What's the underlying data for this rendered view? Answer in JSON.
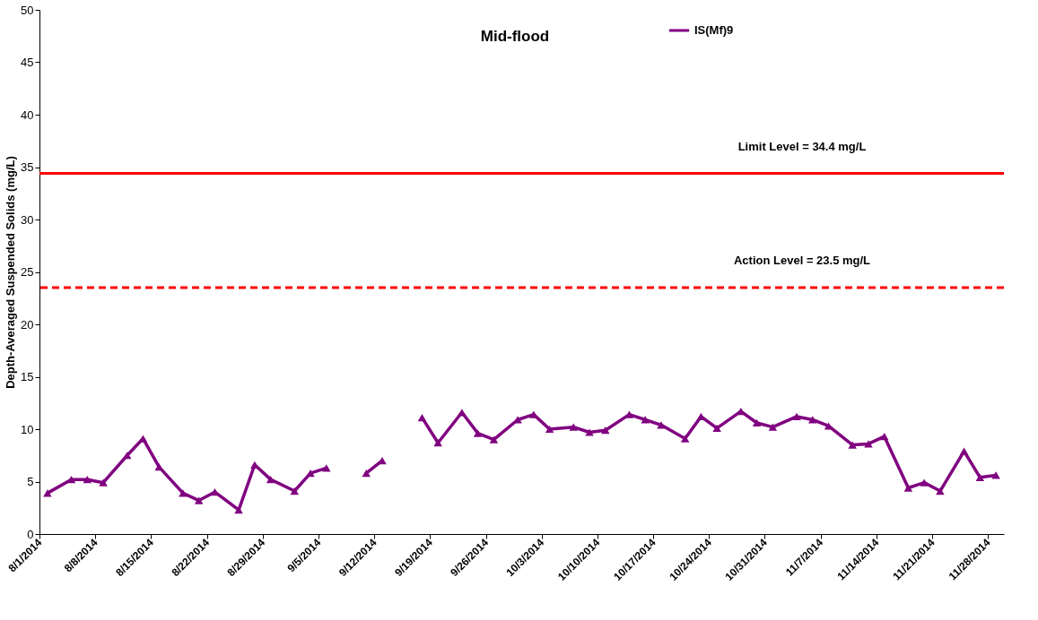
{
  "chart_data": {
    "type": "line",
    "title": "Mid-flood",
    "ylabel": "Depth-Averaged Suspended Solids (mg/L)",
    "x": [
      "2014-08-02",
      "2014-08-05",
      "2014-08-07",
      "2014-08-09",
      "2014-08-12",
      "2014-08-14",
      "2014-08-16",
      "2014-08-19",
      "2014-08-21",
      "2014-08-23",
      "2014-08-26",
      "2014-08-28",
      "2014-08-30",
      "2014-09-02",
      "2014-09-04",
      "2014-09-06",
      "2014-09-09",
      "2014-09-11",
      "2014-09-13",
      "2014-09-16",
      "2014-09-18",
      "2014-09-20",
      "2014-09-23",
      "2014-09-25",
      "2014-09-27",
      "2014-09-30",
      "2014-10-02",
      "2014-10-04",
      "2014-10-07",
      "2014-10-09",
      "2014-10-11",
      "2014-10-14",
      "2014-10-16",
      "2014-10-18",
      "2014-10-21",
      "2014-10-23",
      "2014-10-25",
      "2014-10-28",
      "2014-10-30",
      "2014-11-01",
      "2014-11-04",
      "2014-11-06",
      "2014-11-08",
      "2014-11-11",
      "2014-11-13",
      "2014-11-15",
      "2014-11-18",
      "2014-11-20",
      "2014-11-22",
      "2014-11-25",
      "2014-11-27",
      "2014-11-29"
    ],
    "series": [
      {
        "name": "IS(Mf)9",
        "color": "#800080",
        "values": [
          3.9,
          5.2,
          5.2,
          4.9,
          7.5,
          9.1,
          6.4,
          3.9,
          3.2,
          4.0,
          2.3,
          6.6,
          5.2,
          4.1,
          5.8,
          6.3,
          null,
          5.8,
          7.0,
          null,
          11.1,
          8.7,
          11.6,
          9.6,
          9.0,
          10.9,
          11.4,
          10.0,
          10.2,
          9.7,
          9.9,
          11.4,
          10.9,
          10.4,
          9.1,
          11.2,
          10.1,
          11.7,
          10.6,
          10.2,
          11.2,
          10.9,
          10.3,
          8.5,
          8.6,
          9.3,
          4.4,
          4.9,
          4.1,
          7.9,
          5.4,
          5.6
        ]
      }
    ],
    "xlim": [
      "2014-08-01",
      "2014-11-30"
    ],
    "xticks": [
      {
        "value": "2014-08-01",
        "label": "8/1/2014"
      },
      {
        "value": "2014-08-08",
        "label": "8/8/2014"
      },
      {
        "value": "2014-08-15",
        "label": "8/15/2014"
      },
      {
        "value": "2014-08-22",
        "label": "8/22/2014"
      },
      {
        "value": "2014-08-29",
        "label": "8/29/2014"
      },
      {
        "value": "2014-09-05",
        "label": "9/5/2014"
      },
      {
        "value": "2014-09-12",
        "label": "9/12/2014"
      },
      {
        "value": "2014-09-19",
        "label": "9/19/2014"
      },
      {
        "value": "2014-09-26",
        "label": "9/26/2014"
      },
      {
        "value": "2014-10-03",
        "label": "10/3/2014"
      },
      {
        "value": "2014-10-10",
        "label": "10/10/2014"
      },
      {
        "value": "2014-10-17",
        "label": "10/17/2014"
      },
      {
        "value": "2014-10-24",
        "label": "10/24/2014"
      },
      {
        "value": "2014-10-31",
        "label": "10/31/2014"
      },
      {
        "value": "2014-11-07",
        "label": "11/7/2014"
      },
      {
        "value": "2014-11-14",
        "label": "11/14/2014"
      },
      {
        "value": "2014-11-21",
        "label": "11/21/2014"
      },
      {
        "value": "2014-11-28",
        "label": "11/28/2014"
      }
    ],
    "ylim": [
      0,
      50
    ],
    "yticks": [
      0,
      5,
      10,
      15,
      20,
      25,
      30,
      35,
      40,
      45,
      50
    ],
    "ref_lines": [
      {
        "axis": "y",
        "value": 34.4,
        "label": "Limit Level = 34.4 mg/L",
        "color": "#ff0000",
        "line_style": "solid"
      },
      {
        "axis": "y",
        "value": 23.5,
        "label": "Action Level = 23.5 mg/L",
        "color": "#ff0000",
        "line_style": "dashed"
      }
    ],
    "grid": false,
    "legend": "top right",
    "marker": "triangle",
    "line_style": "solid"
  }
}
